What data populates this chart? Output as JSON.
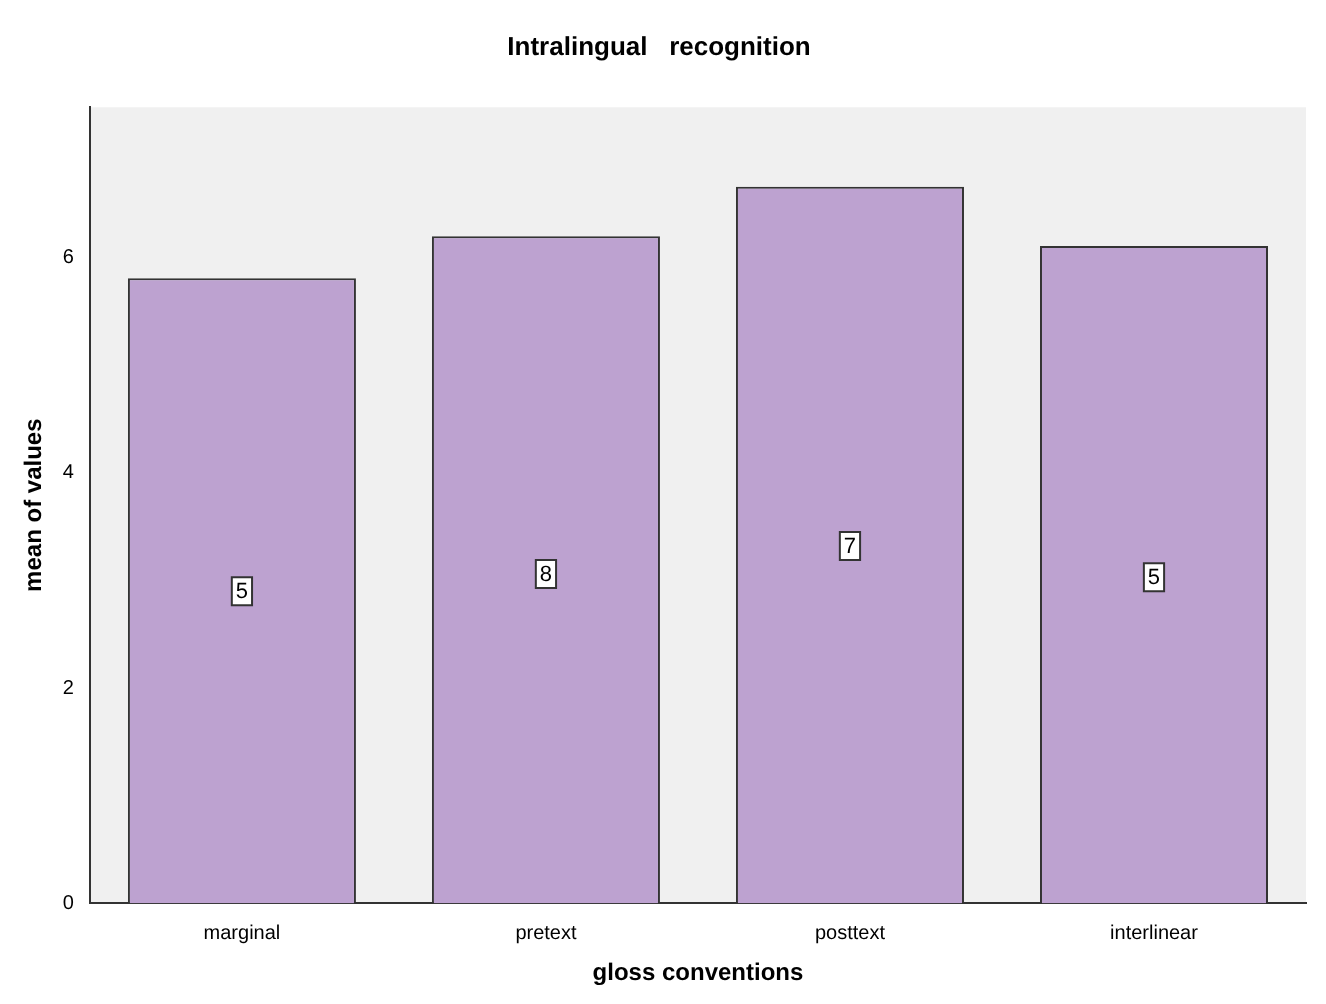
{
  "chart_data": {
    "type": "bar",
    "title": "Intralingual   recognition",
    "xlabel": "gloss conventions",
    "ylabel": "mean of values",
    "categories": [
      "marginal",
      "pretext",
      "posttext",
      "interlinear"
    ],
    "values": [
      5.81,
      6.2,
      6.66,
      6.11
    ],
    "color": "#bda2d0",
    "ylim": [
      0,
      7.4
    ],
    "yticks": [
      0,
      2,
      4,
      6
    ],
    "grid": false,
    "legend": false,
    "annotations": [
      {
        "text": "5",
        "x": "marginal",
        "y": 2.9
      },
      {
        "text": "8",
        "x": "pretext",
        "y": 3.06
      },
      {
        "text": "7",
        "x": "posttext",
        "y": 3.32
      },
      {
        "text": "5",
        "x": "interlinear",
        "y": 3.03
      }
    ]
  }
}
